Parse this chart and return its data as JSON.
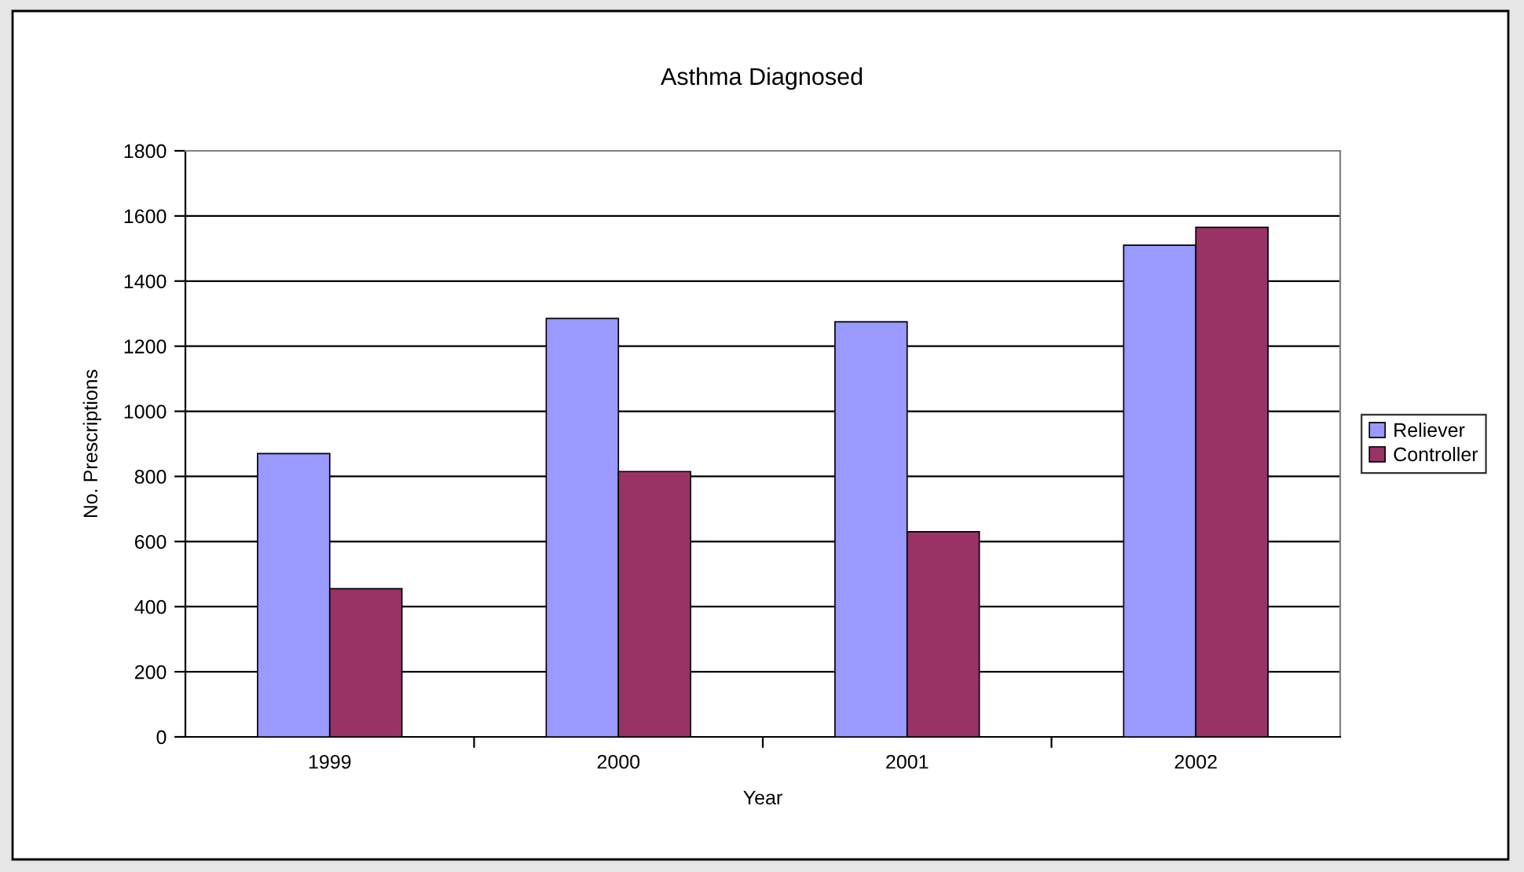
{
  "chart_data": {
    "type": "bar",
    "title": "Asthma Diagnosed",
    "xlabel": "Year",
    "ylabel": "No. Prescriptions",
    "categories": [
      "1999",
      "2000",
      "2001",
      "2002"
    ],
    "series": [
      {
        "name": "Reliever",
        "color": "#9999ff",
        "values": [
          870,
          1285,
          1275,
          1510
        ]
      },
      {
        "name": "Controller",
        "color": "#993366",
        "values": [
          455,
          815,
          630,
          1565
        ]
      }
    ],
    "ylim": [
      0,
      1800
    ],
    "yticks": [
      0,
      200,
      400,
      600,
      800,
      1000,
      1200,
      1400,
      1600,
      1800
    ],
    "grid": "y",
    "legend": "right"
  }
}
